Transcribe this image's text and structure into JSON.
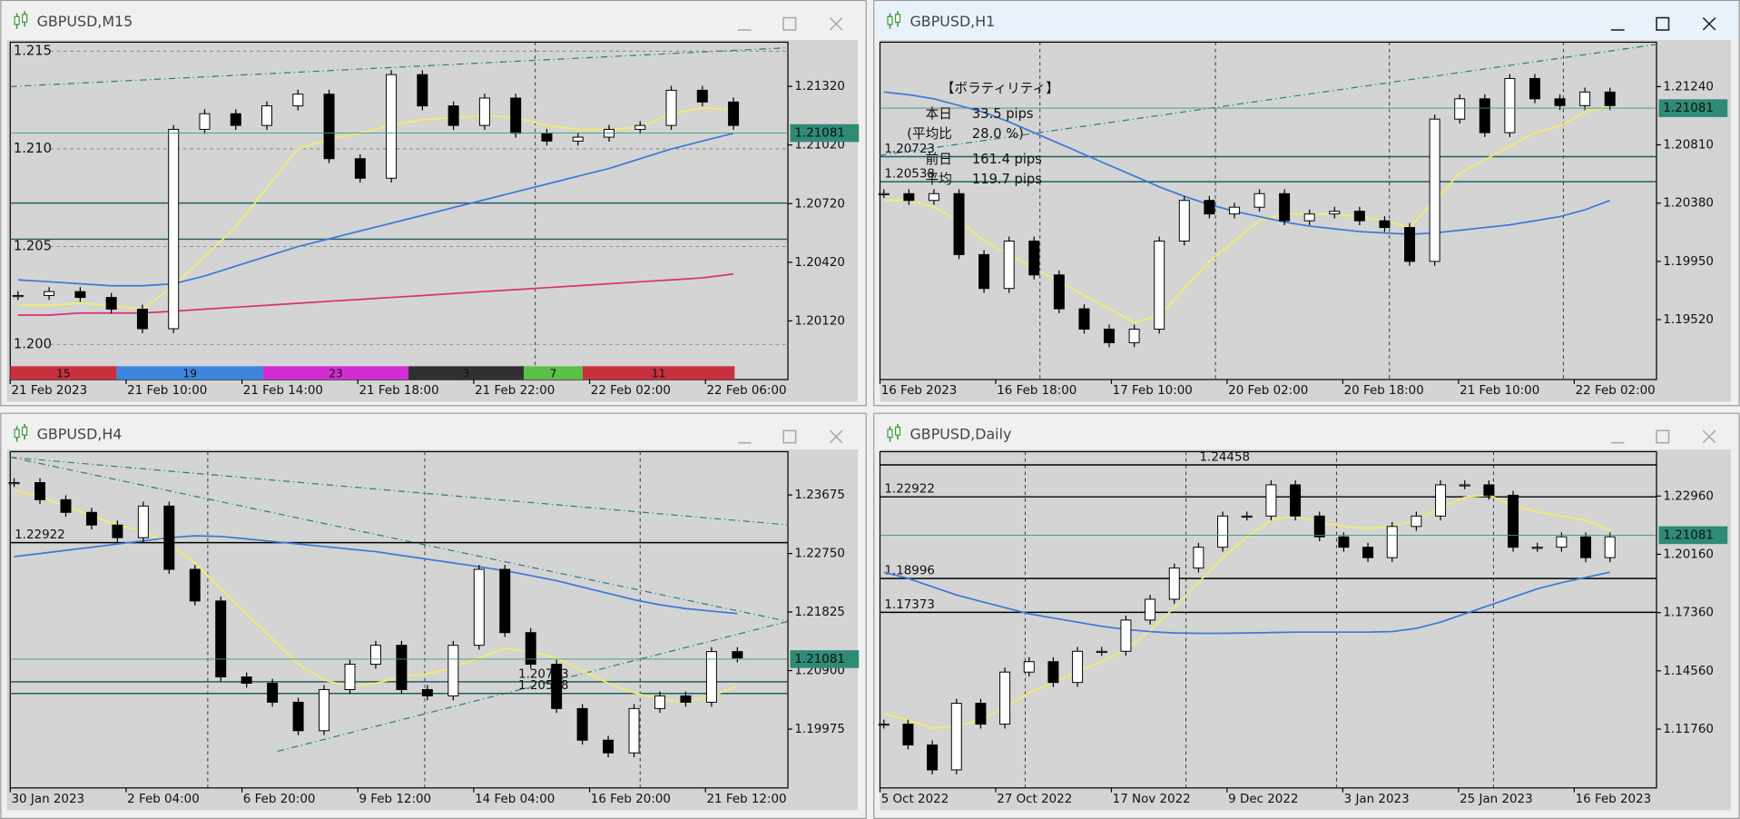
{
  "windows": [
    {
      "title": "GBPUSD,M15",
      "type": "candlestick",
      "ylim": [
        1.1982,
        1.21546
      ],
      "yticks": [
        {
          "value": 1.2132,
          "label": "1.21320"
        },
        {
          "value": 1.2102,
          "label": "1.21020"
        },
        {
          "value": 1.2072,
          "label": "1.20720"
        },
        {
          "value": 1.2042,
          "label": "1.20420"
        },
        {
          "value": 1.2012,
          "label": "1.20120"
        }
      ],
      "xlabels": [
        "21 Feb 2023",
        "21 Feb 10:00",
        "21 Feb 14:00",
        "21 Feb 18:00",
        "21 Feb 22:00",
        "22 Feb 02:00",
        "22 Feb 06:00"
      ],
      "round_levels": [
        {
          "value": 1.215,
          "label": "1.215"
        },
        {
          "value": 1.21,
          "label": "1.210"
        },
        {
          "value": 1.205,
          "label": "1.205"
        },
        {
          "value": 1.2,
          "label": "1.200"
        }
      ],
      "lines": [
        1.20723,
        1.20538
      ],
      "price": 1.21081,
      "values": [
        1.2025,
        1.2027,
        1.2024,
        1.2018,
        1.2008,
        1.211,
        1.2118,
        1.2112,
        1.2122,
        1.2128,
        1.2095,
        1.2085,
        1.2138,
        1.2122,
        1.2112,
        1.2126,
        1.2108,
        1.2104,
        1.2106,
        1.211,
        1.2112,
        1.213,
        1.2124,
        1.2112
      ],
      "series": [
        {
          "color": "#f2ee6a",
          "values": [
            1.202,
            1.202,
            1.2021,
            1.202,
            1.2018,
            1.203,
            1.2045,
            1.206,
            1.208,
            1.21,
            1.2105,
            1.2108,
            1.2112,
            1.2115,
            1.2116,
            1.2117,
            1.2116,
            1.2112,
            1.211,
            1.211,
            1.2111,
            1.2118,
            1.2121,
            1.212
          ]
        },
        {
          "color": "#3c78d8",
          "values": [
            1.2033,
            1.2032,
            1.2031,
            1.203,
            1.203,
            1.2031,
            1.2035,
            1.204,
            1.2045,
            1.205,
            1.2054,
            1.2058,
            1.2062,
            1.2066,
            1.207,
            1.2074,
            1.2078,
            1.2082,
            1.2086,
            1.209,
            1.2095,
            1.21,
            1.2104,
            1.2108
          ]
        },
        {
          "color": "#d8307a",
          "values": [
            1.2015,
            1.2015,
            1.2016,
            1.2016,
            1.2016,
            1.2017,
            1.2018,
            1.2019,
            1.202,
            1.2021,
            1.2022,
            1.2023,
            1.2024,
            1.2025,
            1.2026,
            1.2027,
            1.2028,
            1.2029,
            1.203,
            1.2031,
            1.2032,
            1.2033,
            1.2034,
            1.2036
          ]
        }
      ],
      "sessions": {
        "counts": [
          15,
          19,
          23,
          3,
          7,
          11
        ],
        "colors": [
          "#c8303e",
          "#3d86e0",
          "#d42cd4",
          "#303030",
          "#5cbf4a",
          "#c8303e"
        ]
      }
    },
    {
      "title": "GBPUSD,H1",
      "type": "candlestick",
      "ylim": [
        1.19078,
        1.21568
      ],
      "yticks": [
        {
          "value": 1.2124,
          "label": "1.21240"
        },
        {
          "value": 1.2081,
          "label": "1.20810"
        },
        {
          "value": 1.2038,
          "label": "1.20380"
        },
        {
          "value": 1.1995,
          "label": "1.19950"
        },
        {
          "value": 1.1952,
          "label": "1.19520"
        }
      ],
      "xlabels": [
        "16 Feb 2023",
        "16 Feb 18:00",
        "17 Feb 10:00",
        "20 Feb 02:00",
        "20 Feb 18:00",
        "21 Feb 10:00",
        "22 Feb 02:00"
      ],
      "levels": [
        1.20723,
        1.20538
      ],
      "price": 1.21081,
      "panel": {
        "heading": "【ボラティリティ】",
        "rows": [
          [
            "本日",
            "33.5 pips"
          ],
          [
            "(平均比",
            "28.0 %)"
          ],
          [
            "前日",
            "161.4 pips"
          ],
          [
            "平均",
            "119.7 pips"
          ]
        ]
      },
      "values": [
        1.2045,
        1.204,
        1.2045,
        1.2,
        1.1975,
        1.201,
        1.1985,
        1.196,
        1.1945,
        1.1935,
        1.1945,
        1.201,
        1.204,
        1.203,
        1.2035,
        1.2045,
        1.2025,
        1.203,
        1.2032,
        1.2025,
        1.202,
        1.1995,
        1.21,
        1.2115,
        1.209,
        1.213,
        1.2115,
        1.211,
        1.212,
        1.211
      ],
      "series": [
        {
          "color": "#f2ee6a",
          "values": [
            1.204,
            1.204,
            1.2035,
            1.2025,
            1.201,
            1.2,
            1.199,
            1.198,
            1.197,
            1.196,
            1.195,
            1.1955,
            1.1975,
            1.1995,
            1.201,
            1.2025,
            1.203,
            1.203,
            1.203,
            1.2028,
            1.2025,
            1.202,
            1.204,
            1.206,
            1.207,
            1.208,
            1.209,
            1.2095,
            1.2105,
            1.211
          ]
        },
        {
          "color": "#3c78d8",
          "values": [
            1.212,
            1.2118,
            1.2115,
            1.211,
            1.2105,
            1.2098,
            1.209,
            1.2082,
            1.2074,
            1.2066,
            1.2058,
            1.205,
            1.2043,
            1.2037,
            1.2032,
            1.2028,
            1.2024,
            1.2021,
            1.2019,
            1.2017,
            1.2016,
            1.2015,
            1.2016,
            1.2018,
            1.202,
            1.2022,
            1.2025,
            1.2028,
            1.2033,
            1.204
          ]
        }
      ]
    },
    {
      "title": "GBPUSD,H4",
      "type": "candlestick",
      "ylim": [
        1.19046,
        1.24359
      ],
      "yticks": [
        {
          "value": 1.23675,
          "label": "1.23675"
        },
        {
          "value": 1.2275,
          "label": "1.22750"
        },
        {
          "value": 1.21825,
          "label": "1.21825"
        },
        {
          "value": 1.209,
          "label": "1.20900"
        },
        {
          "value": 1.19975,
          "label": "1.19975"
        }
      ],
      "xlabels": [
        "30 Jan 2023",
        "2 Feb 04:00",
        "6 Feb 20:00",
        "9 Feb 12:00",
        "14 Feb 04:00",
        "16 Feb 20:00",
        "21 Feb 12:00"
      ],
      "levels": [
        1.22922,
        1.20723,
        1.20538
      ],
      "price": 1.21081,
      "values": [
        1.2387,
        1.236,
        1.234,
        1.232,
        1.23,
        1.235,
        1.225,
        1.22,
        1.208,
        1.207,
        1.204,
        1.1995,
        1.206,
        1.21,
        1.213,
        1.206,
        1.205,
        1.213,
        1.225,
        1.215,
        1.21,
        1.203,
        1.198,
        1.196,
        1.203,
        1.205,
        1.204,
        1.212,
        1.211
      ],
      "series": [
        {
          "color": "#f2ee6a",
          "values": [
            1.2375,
            1.2365,
            1.235,
            1.2335,
            1.232,
            1.231,
            1.229,
            1.226,
            1.222,
            1.218,
            1.214,
            1.21,
            1.2075,
            1.2065,
            1.207,
            1.208,
            1.2085,
            1.2095,
            1.211,
            1.2125,
            1.212,
            1.211,
            1.209,
            1.207,
            1.2055,
            1.2045,
            1.204,
            1.205,
            1.2065
          ]
        },
        {
          "color": "#3c78d8",
          "values": [
            1.227,
            1.2275,
            1.228,
            1.2285,
            1.229,
            1.2295,
            1.23,
            1.2303,
            1.2302,
            1.2298,
            1.2294,
            1.229,
            1.2286,
            1.2282,
            1.2278,
            1.2272,
            1.2266,
            1.226,
            1.2254,
            1.2248,
            1.224,
            1.2232,
            1.2222,
            1.2212,
            1.2202,
            1.2194,
            1.2188,
            1.2184,
            1.218
          ]
        }
      ]
    },
    {
      "title": "GBPUSD,Daily",
      "type": "candlestick",
      "ylim": [
        1.08933,
        1.25093
      ],
      "yticks": [
        {
          "value": 1.2296,
          "label": "1.22960"
        },
        {
          "value": 1.2016,
          "label": "1.20160"
        },
        {
          "value": 1.1736,
          "label": "1.17360"
        },
        {
          "value": 1.1456,
          "label": "1.14560"
        },
        {
          "value": 1.1176,
          "label": "1.11760"
        }
      ],
      "xlabels": [
        "5 Oct 2022",
        "27 Oct 2022",
        "17 Nov 2022",
        "9 Dec 2022",
        "3 Jan 2023",
        "25 Jan 2023",
        "16 Feb 2023"
      ],
      "levels": [
        1.24458,
        1.22922,
        1.18996,
        1.17373
      ],
      "price": 1.21081,
      "values": [
        1.12,
        1.11,
        1.098,
        1.13,
        1.12,
        1.145,
        1.15,
        1.14,
        1.155,
        1.155,
        1.17,
        1.18,
        1.195,
        1.205,
        1.22,
        1.22,
        1.235,
        1.22,
        1.21,
        1.205,
        1.2,
        1.215,
        1.22,
        1.235,
        1.235,
        1.23,
        1.205,
        1.205,
        1.21,
        1.2,
        1.21
      ],
      "series": [
        {
          "color": "#f2ee6a",
          "values": [
            1.125,
            1.122,
            1.118,
            1.119,
            1.122,
            1.128,
            1.135,
            1.14,
            1.145,
            1.15,
            1.156,
            1.165,
            1.176,
            1.188,
            1.2,
            1.21,
            1.218,
            1.22,
            1.217,
            1.215,
            1.214,
            1.215,
            1.218,
            1.224,
            1.229,
            1.23,
            1.225,
            1.222,
            1.22,
            1.218,
            1.213
          ]
        },
        {
          "color": "#3c78d8",
          "values": [
            1.193,
            1.19,
            1.186,
            1.182,
            1.179,
            1.176,
            1.173,
            1.171,
            1.169,
            1.167,
            1.1655,
            1.1645,
            1.1638,
            1.1636,
            1.1636,
            1.1638,
            1.164,
            1.1642,
            1.1642,
            1.1642,
            1.1642,
            1.1645,
            1.166,
            1.169,
            1.173,
            1.177,
            1.181,
            1.185,
            1.188,
            1.1905,
            1.193
          ]
        }
      ]
    }
  ]
}
